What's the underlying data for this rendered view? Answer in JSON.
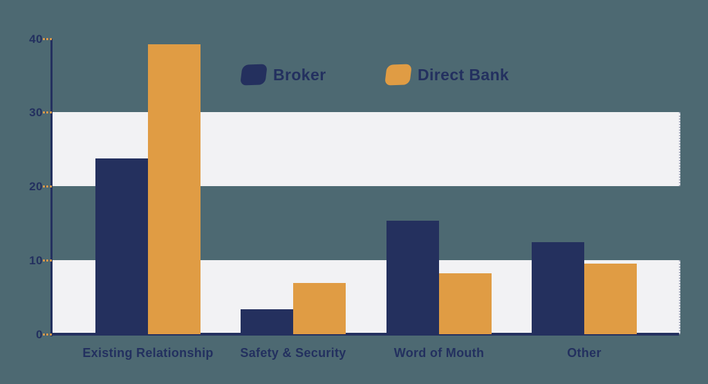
{
  "colors": {
    "background": "#4d6972",
    "stripe_band": "#f2f2f4",
    "axis": "#23305f",
    "tick_dash": "#d6994c",
    "text": "#23305f",
    "series_broker": "#24305e",
    "series_direct_bank": "#e09c44"
  },
  "chart_data": {
    "type": "bar",
    "title": "",
    "xlabel": "",
    "ylabel": "",
    "categories": [
      "Existing Relationship",
      "Safety & Security",
      "Word of Mouth",
      "Other"
    ],
    "series": [
      {
        "name": "Broker",
        "color": "#24305e",
        "values": [
          23.8,
          3.4,
          15.3,
          12.4
        ]
      },
      {
        "name": "Direct Bank",
        "color": "#e09c44",
        "values": [
          39.2,
          6.9,
          8.2,
          9.5
        ]
      }
    ],
    "ylim": [
      0,
      40
    ],
    "yticks": [
      0,
      10,
      20,
      30,
      40
    ],
    "grid": "horizontal-stripe-bands",
    "stripe_bands": [
      [
        0,
        10
      ],
      [
        20,
        30
      ]
    ],
    "legend_position": "top-center"
  }
}
